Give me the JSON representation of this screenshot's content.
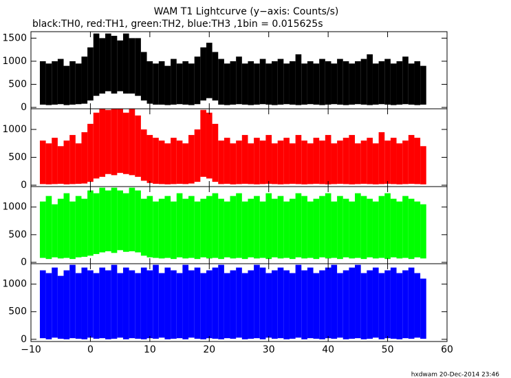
{
  "header": {
    "title": "WAM T1 Lightcurve (y−axis: Counts/s)",
    "subtitle": "black:TH0, red:TH1, green:TH2, blue:TH3 ,1bin = 0.015625s"
  },
  "footer": "hxdwam 20-Dec-2014 23:46",
  "chart_data": [
    {
      "type": "range",
      "color": "#000000",
      "xlim": [
        -10,
        60
      ],
      "ylim": [
        -30,
        1640
      ],
      "yticks": [
        0,
        500,
        1000,
        1500
      ],
      "x": [
        -8,
        -7,
        -6,
        -5,
        -4,
        -3,
        -2,
        -1,
        0,
        1,
        2,
        3,
        4,
        5,
        6,
        7,
        8,
        9,
        10,
        11,
        12,
        13,
        14,
        15,
        16,
        17,
        18,
        19,
        20,
        21,
        22,
        23,
        24,
        25,
        26,
        27,
        28,
        29,
        30,
        31,
        32,
        33,
        34,
        35,
        36,
        37,
        38,
        39,
        40,
        41,
        42,
        43,
        44,
        45,
        46,
        47,
        48,
        49,
        50,
        51,
        52,
        53,
        54,
        55,
        56
      ],
      "upper": [
        1000,
        950,
        1000,
        1050,
        900,
        1000,
        950,
        1100,
        1300,
        1600,
        1500,
        1600,
        1550,
        1450,
        1600,
        1500,
        1500,
        1200,
        1000,
        950,
        1000,
        900,
        1050,
        950,
        1000,
        950,
        1100,
        1300,
        1400,
        1200,
        1050,
        950,
        1000,
        1100,
        950,
        1000,
        950,
        1050,
        950,
        1000,
        1050,
        950,
        1000,
        1150,
        950,
        1000,
        950,
        1050,
        1000,
        950,
        1050,
        1000,
        950,
        1000,
        1050,
        1150,
        950,
        1000,
        1050,
        950,
        1000,
        1100,
        950,
        1000,
        900
      ],
      "lower": [
        60,
        50,
        60,
        70,
        50,
        60,
        70,
        80,
        150,
        250,
        300,
        350,
        300,
        350,
        300,
        300,
        250,
        150,
        80,
        60,
        60,
        50,
        60,
        70,
        60,
        50,
        70,
        150,
        200,
        150,
        60,
        50,
        60,
        70,
        60,
        50,
        60,
        70,
        60,
        50,
        60,
        70,
        60,
        50,
        60,
        70,
        60,
        50,
        60,
        70,
        60,
        50,
        60,
        70,
        60,
        50,
        60,
        70,
        60,
        50,
        60,
        70,
        60,
        50,
        60
      ]
    },
    {
      "type": "range",
      "color": "#ff0000",
      "xlim": [
        -10,
        60
      ],
      "ylim": [
        -25,
        1370
      ],
      "yticks": [
        0,
        500,
        1000
      ],
      "x": [
        -8,
        -7,
        -6,
        -5,
        -4,
        -3,
        -2,
        -1,
        0,
        1,
        2,
        3,
        4,
        5,
        6,
        7,
        8,
        9,
        10,
        11,
        12,
        13,
        14,
        15,
        16,
        17,
        18,
        19,
        20,
        21,
        22,
        23,
        24,
        25,
        26,
        27,
        28,
        29,
        30,
        31,
        32,
        33,
        34,
        35,
        36,
        37,
        38,
        39,
        40,
        41,
        42,
        43,
        44,
        45,
        46,
        47,
        48,
        49,
        50,
        51,
        52,
        53,
        54,
        55,
        56
      ],
      "upper": [
        800,
        750,
        850,
        700,
        800,
        900,
        750,
        950,
        1100,
        1300,
        1400,
        1350,
        1400,
        1400,
        1300,
        1400,
        1250,
        1000,
        900,
        850,
        800,
        750,
        850,
        800,
        750,
        900,
        1000,
        1350,
        1300,
        1100,
        800,
        850,
        750,
        800,
        900,
        750,
        850,
        800,
        900,
        750,
        800,
        850,
        750,
        900,
        800,
        750,
        850,
        800,
        900,
        750,
        800,
        850,
        900,
        750,
        800,
        850,
        750,
        950,
        800,
        850,
        750,
        800,
        900,
        850,
        700
      ],
      "lower": [
        20,
        15,
        20,
        25,
        15,
        20,
        25,
        30,
        60,
        120,
        150,
        200,
        180,
        220,
        200,
        180,
        150,
        80,
        40,
        25,
        20,
        15,
        20,
        25,
        20,
        30,
        60,
        150,
        120,
        60,
        20,
        25,
        15,
        20,
        25,
        20,
        15,
        20,
        25,
        20,
        15,
        20,
        25,
        20,
        15,
        20,
        25,
        20,
        15,
        20,
        25,
        20,
        15,
        20,
        25,
        20,
        15,
        20,
        25,
        20,
        15,
        20,
        25,
        20,
        15
      ]
    },
    {
      "type": "range",
      "color": "#00ff00",
      "xlim": [
        -10,
        60
      ],
      "ylim": [
        -25,
        1370
      ],
      "yticks": [
        0,
        500,
        1000
      ],
      "x": [
        -8,
        -7,
        -6,
        -5,
        -4,
        -3,
        -2,
        -1,
        0,
        1,
        2,
        3,
        4,
        5,
        6,
        7,
        8,
        9,
        10,
        11,
        12,
        13,
        14,
        15,
        16,
        17,
        18,
        19,
        20,
        21,
        22,
        23,
        24,
        25,
        26,
        27,
        28,
        29,
        30,
        31,
        32,
        33,
        34,
        35,
        36,
        37,
        38,
        39,
        40,
        41,
        42,
        43,
        44,
        45,
        46,
        47,
        48,
        49,
        50,
        51,
        52,
        53,
        54,
        55,
        56
      ],
      "upper": [
        1100,
        1200,
        1050,
        1150,
        1250,
        1100,
        1200,
        1150,
        1300,
        1250,
        1350,
        1300,
        1350,
        1300,
        1250,
        1350,
        1300,
        1150,
        1200,
        1100,
        1150,
        1200,
        1100,
        1250,
        1150,
        1200,
        1100,
        1150,
        1200,
        1250,
        1150,
        1100,
        1200,
        1250,
        1100,
        1150,
        1200,
        1100,
        1250,
        1150,
        1200,
        1100,
        1150,
        1250,
        1200,
        1100,
        1150,
        1200,
        1250,
        1100,
        1200,
        1150,
        1100,
        1250,
        1200,
        1150,
        1100,
        1200,
        1250,
        1150,
        1100,
        1200,
        1150,
        1100,
        1050
      ],
      "lower": [
        80,
        60,
        90,
        70,
        80,
        60,
        90,
        100,
        120,
        150,
        180,
        200,
        170,
        220,
        190,
        200,
        180,
        120,
        90,
        80,
        70,
        80,
        60,
        90,
        70,
        80,
        60,
        90,
        70,
        80,
        60,
        90,
        70,
        80,
        60,
        90,
        70,
        80,
        60,
        90,
        70,
        80,
        60,
        90,
        70,
        80,
        60,
        90,
        70,
        80,
        60,
        90,
        70,
        80,
        60,
        90,
        70,
        80,
        60,
        90,
        70,
        80,
        60,
        90,
        70
      ]
    },
    {
      "type": "range",
      "color": "#0000ff",
      "xlim": [
        -10,
        60
      ],
      "ylim": [
        -40,
        1370
      ],
      "yticks": [
        0,
        500,
        1000
      ],
      "xticks": [
        {
          "value": -10,
          "label": "−10"
        },
        0,
        10,
        20,
        30,
        40,
        50,
        60
      ],
      "x": [
        -8,
        -7,
        -6,
        -5,
        -4,
        -3,
        -2,
        -1,
        0,
        1,
        2,
        3,
        4,
        5,
        6,
        7,
        8,
        9,
        10,
        11,
        12,
        13,
        14,
        15,
        16,
        17,
        18,
        19,
        20,
        21,
        22,
        23,
        24,
        25,
        26,
        27,
        28,
        29,
        30,
        31,
        32,
        33,
        34,
        35,
        36,
        37,
        38,
        39,
        40,
        41,
        42,
        43,
        44,
        45,
        46,
        47,
        48,
        49,
        50,
        51,
        52,
        53,
        54,
        55,
        56
      ],
      "upper": [
        1250,
        1200,
        1300,
        1150,
        1250,
        1350,
        1200,
        1300,
        1250,
        1200,
        1300,
        1250,
        1350,
        1200,
        1300,
        1250,
        1200,
        1300,
        1250,
        1350,
        1200,
        1300,
        1250,
        1200,
        1350,
        1250,
        1300,
        1200,
        1250,
        1300,
        1350,
        1200,
        1250,
        1300,
        1200,
        1250,
        1350,
        1300,
        1200,
        1250,
        1300,
        1250,
        1200,
        1350,
        1250,
        1300,
        1200,
        1250,
        1300,
        1350,
        1200,
        1250,
        1300,
        1350,
        1200,
        1250,
        1300,
        1200,
        1250,
        1300,
        1200,
        1250,
        1300,
        1200,
        1100
      ],
      "lower": [
        20,
        0,
        30,
        10,
        0,
        20,
        10,
        0,
        30,
        10,
        20,
        0,
        10,
        30,
        0,
        20,
        10,
        0,
        20,
        10,
        30,
        0,
        10,
        20,
        0,
        30,
        10,
        0,
        20,
        10,
        0,
        20,
        10,
        30,
        0,
        10,
        20,
        0,
        30,
        10,
        20,
        0,
        10,
        30,
        0,
        20,
        10,
        0,
        20,
        10,
        30,
        0,
        10,
        20,
        0,
        10,
        30,
        0,
        20,
        10,
        0,
        20,
        10,
        30,
        10
      ]
    }
  ]
}
